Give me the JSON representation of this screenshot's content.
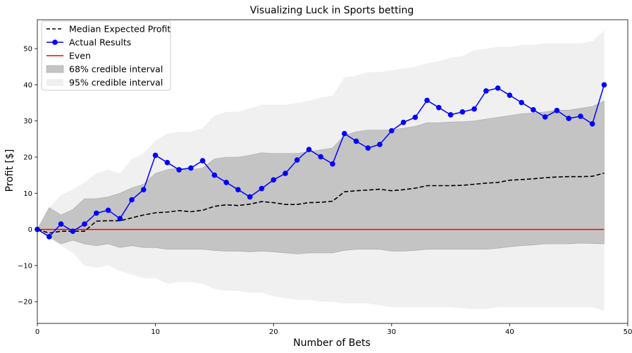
{
  "chart_data": {
    "type": "line",
    "title": "Visualizing Luck in Sports betting",
    "xlabel": "Number of Bets",
    "ylabel": "Profit [$]",
    "xlim": [
      0,
      50
    ],
    "ylim": [
      -26,
      58
    ],
    "xticks": [
      0,
      10,
      20,
      30,
      40,
      50
    ],
    "yticks": [
      -20,
      -10,
      0,
      10,
      20,
      30,
      40,
      50
    ],
    "grid": false,
    "legend_position": "top-left",
    "colors": {
      "median": "#000000",
      "actual": "#0000ff",
      "even": "#ff0000",
      "band68": "#c4c4c4",
      "band95": "#f0f0f0"
    },
    "x": [
      0,
      1,
      2,
      3,
      4,
      5,
      6,
      7,
      8,
      9,
      10,
      11,
      12,
      13,
      14,
      15,
      16,
      17,
      18,
      19,
      20,
      21,
      22,
      23,
      24,
      25,
      26,
      27,
      28,
      29,
      30,
      31,
      32,
      33,
      34,
      35,
      36,
      37,
      38,
      39,
      40,
      41,
      42,
      43,
      44,
      45,
      46,
      47,
      48
    ],
    "series": [
      {
        "name": "Median Expected Profit",
        "style": "dashed",
        "values": [
          0,
          -1,
          -0.5,
          -0.5,
          -0.5,
          2.3,
          2.4,
          2.4,
          3.2,
          4.0,
          4.6,
          4.8,
          5.2,
          4.9,
          5.3,
          6.4,
          6.8,
          6.6,
          7.0,
          7.7,
          7.4,
          6.9,
          6.9,
          7.4,
          7.5,
          7.8,
          10.4,
          10.7,
          10.9,
          11.1,
          10.7,
          11.0,
          11.4,
          12.1,
          12.1,
          12.1,
          12.2,
          12.5,
          12.8,
          13.0,
          13.6,
          13.8,
          14.0,
          14.3,
          14.5,
          14.6,
          14.6,
          14.7,
          15.6
        ]
      },
      {
        "name": "Actual Results",
        "style": "solid-markers",
        "values": [
          0,
          -2.0,
          1.5,
          -0.5,
          1.5,
          4.5,
          5.3,
          3.0,
          8.2,
          11.0,
          20.5,
          18.5,
          16.5,
          17.0,
          19.0,
          15.0,
          13.0,
          11.0,
          9.0,
          11.3,
          13.7,
          15.5,
          19.2,
          22.1,
          20.1,
          18.1,
          26.5,
          24.4,
          22.5,
          23.5,
          27.3,
          29.6,
          31.0,
          35.7,
          33.7,
          31.7,
          32.5,
          33.3,
          38.3,
          39.1,
          37.1,
          35.1,
          33.1,
          31.1,
          32.9,
          30.7,
          31.3,
          29.2,
          40.0
        ]
      },
      {
        "name": "Even",
        "style": "solid",
        "values": [
          0,
          0,
          0,
          0,
          0,
          0,
          0,
          0,
          0,
          0,
          0,
          0,
          0,
          0,
          0,
          0,
          0,
          0,
          0,
          0,
          0,
          0,
          0,
          0,
          0,
          0,
          0,
          0,
          0,
          0,
          0,
          0,
          0,
          0,
          0,
          0,
          0,
          0,
          0,
          0,
          0,
          0,
          0,
          0,
          0,
          0,
          0,
          0,
          0
        ]
      }
    ],
    "bands": [
      {
        "name": "68% credible interval",
        "upper": [
          0,
          6.0,
          4.0,
          5.5,
          8.5,
          8.5,
          9.0,
          10.0,
          11.5,
          12.5,
          15.5,
          16.5,
          17.0,
          16.5,
          17.0,
          19.5,
          20.0,
          20.0,
          20.5,
          21.2,
          21.0,
          21.0,
          21.0,
          21.5,
          22.0,
          22.5,
          26.0,
          27.0,
          27.5,
          27.5,
          27.5,
          28.0,
          28.5,
          29.5,
          29.5,
          29.7,
          29.8,
          30.0,
          30.5,
          31.0,
          31.5,
          32.0,
          32.2,
          32.5,
          33.0,
          33.0,
          33.5,
          34.0,
          35.5
        ],
        "lower": [
          0,
          -2.0,
          -4.0,
          -3.0,
          -4.0,
          -4.5,
          -4.0,
          -5.0,
          -4.5,
          -5.0,
          -5.0,
          -5.5,
          -5.5,
          -5.5,
          -5.5,
          -5.8,
          -6.0,
          -6.0,
          -6.2,
          -6.0,
          -6.2,
          -6.5,
          -6.8,
          -6.5,
          -6.5,
          -6.5,
          -5.8,
          -5.5,
          -5.5,
          -5.5,
          -6.0,
          -6.0,
          -5.8,
          -5.5,
          -5.5,
          -5.5,
          -5.5,
          -5.5,
          -5.5,
          -5.2,
          -4.8,
          -4.5,
          -4.3,
          -4.0,
          -4.0,
          -4.0,
          -3.8,
          -3.9,
          -4.0
        ]
      },
      {
        "name": "95% credible interval",
        "upper": [
          0,
          6.0,
          9.5,
          11.0,
          13.0,
          15.5,
          16.5,
          15.5,
          19.5,
          21.0,
          24.5,
          26.5,
          27.0,
          27.0,
          28.0,
          31.5,
          32.5,
          32.5,
          33.5,
          34.5,
          34.5,
          34.5,
          35.0,
          35.5,
          36.5,
          37.0,
          42.0,
          42.5,
          43.5,
          43.5,
          44.0,
          44.5,
          45.0,
          46.0,
          46.5,
          47.5,
          48.0,
          49.5,
          50.0,
          50.5,
          50.5,
          51.0,
          51.0,
          51.5,
          51.5,
          51.5,
          51.5,
          52.0,
          55.0
        ],
        "lower": [
          0,
          -2.5,
          -4.5,
          -6.5,
          -10.0,
          -10.5,
          -10.0,
          -11.5,
          -12.5,
          -13.5,
          -13.5,
          -15.0,
          -14.5,
          -14.5,
          -15.0,
          -16.5,
          -17.0,
          -17.0,
          -17.5,
          -17.5,
          -18.5,
          -19.0,
          -19.5,
          -19.5,
          -20.0,
          -20.0,
          -20.5,
          -20.5,
          -20.5,
          -21.0,
          -21.5,
          -21.5,
          -21.5,
          -21.5,
          -21.5,
          -21.5,
          -21.8,
          -22.0,
          -22.0,
          -21.5,
          -21.5,
          -21.5,
          -21.5,
          -21.5,
          -21.5,
          -21.5,
          -21.5,
          -21.5,
          -22.5
        ]
      }
    ],
    "legend": [
      "Median Expected Profit",
      "Actual Results",
      "Even",
      "68% credible interval",
      "95% credible interval"
    ]
  }
}
